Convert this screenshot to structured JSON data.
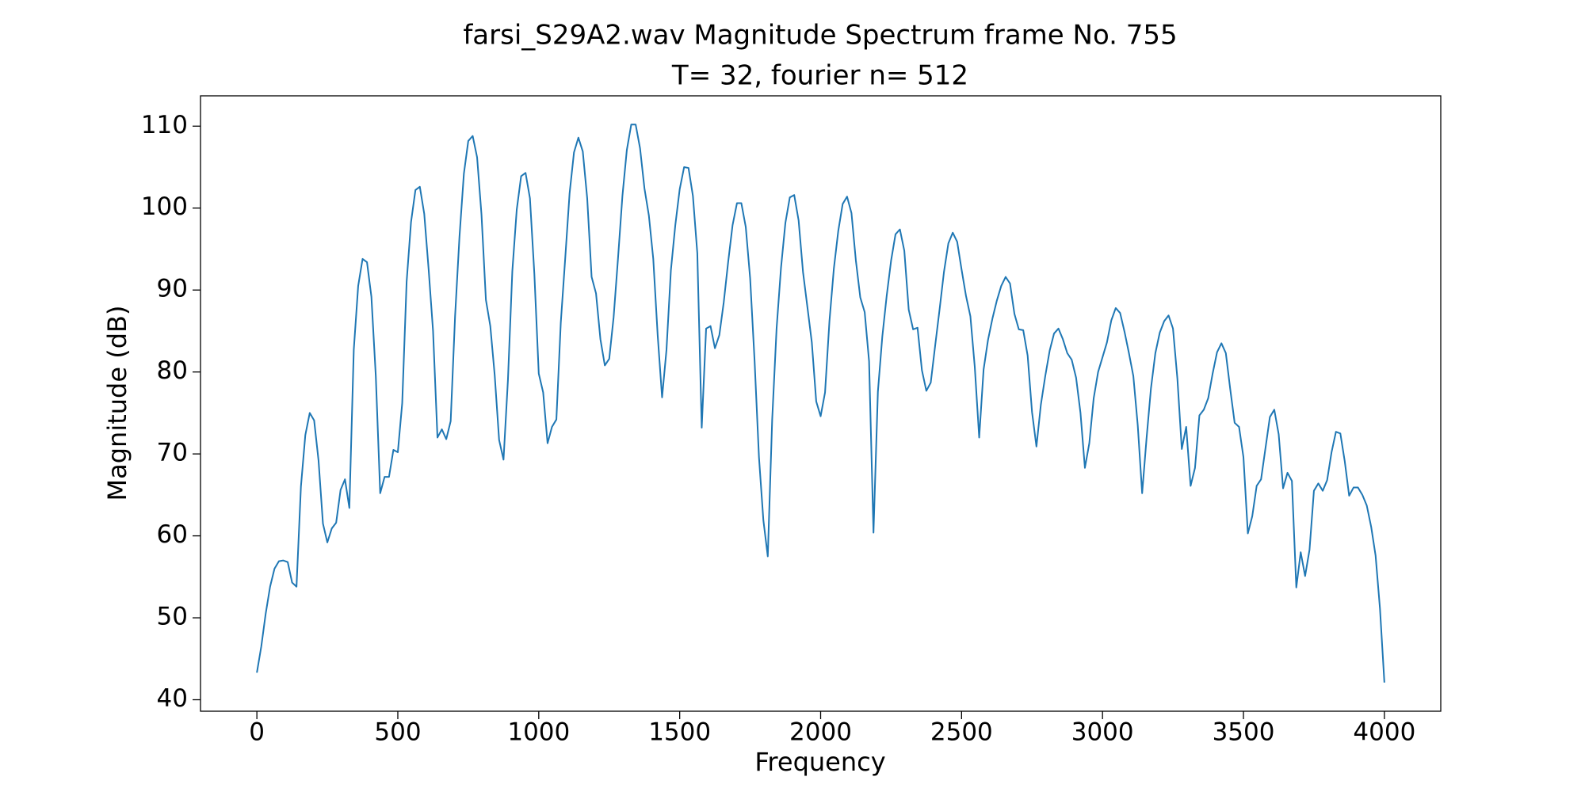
{
  "chart_data": {
    "type": "line",
    "title": "farsi_S29A2.wav Magnitude Spectrum frame No. 755",
    "subtitle": "T= 32, fourier n= 512",
    "x_label": "Frequency",
    "y_label": "Magnitude (dB)",
    "color": "#1f77b4",
    "xlim": [
      -200,
      4200
    ],
    "ylim": [
      38.6,
      113.7
    ],
    "xticks": [
      0,
      500,
      1000,
      1500,
      2000,
      2500,
      3000,
      3500,
      4000
    ],
    "yticks": [
      40,
      50,
      60,
      70,
      80,
      90,
      100,
      110
    ],
    "x": [
      0,
      15.625,
      31.25,
      46.875,
      62.5,
      78.125,
      93.75,
      109.375,
      125,
      140.625,
      156.25,
      171.875,
      187.5,
      203.125,
      218.75,
      234.375,
      250,
      265.625,
      281.25,
      296.875,
      312.5,
      328.125,
      343.75,
      359.375,
      375,
      390.625,
      406.25,
      421.875,
      437.5,
      453.125,
      468.75,
      484.375,
      500,
      515.625,
      531.25,
      546.875,
      562.5,
      578.125,
      593.75,
      609.375,
      625,
      640.625,
      656.25,
      671.875,
      687.5,
      703.125,
      718.75,
      734.375,
      750,
      765.625,
      781.25,
      796.875,
      812.5,
      828.125,
      843.75,
      859.375,
      875,
      890.625,
      906.25,
      921.875,
      937.5,
      953.125,
      968.75,
      984.375,
      1000,
      1015.625,
      1031.25,
      1046.875,
      1062.5,
      1078.125,
      1093.75,
      1109.375,
      1125,
      1140.625,
      1156.25,
      1171.875,
      1187.5,
      1203.125,
      1218.75,
      1234.375,
      1250,
      1265.625,
      1281.25,
      1296.875,
      1312.5,
      1328.125,
      1343.75,
      1359.375,
      1375,
      1390.625,
      1406.25,
      1421.875,
      1437.5,
      1453.125,
      1468.75,
      1484.375,
      1500,
      1515.625,
      1531.25,
      1546.875,
      1562.5,
      1578.125,
      1593.75,
      1609.375,
      1625,
      1640.625,
      1656.25,
      1671.875,
      1687.5,
      1703.125,
      1718.75,
      1734.375,
      1750,
      1765.625,
      1781.25,
      1796.875,
      1812.5,
      1828.125,
      1843.75,
      1859.375,
      1875,
      1890.625,
      1906.25,
      1921.875,
      1937.5,
      1953.125,
      1968.75,
      1984.375,
      2000,
      2015.625,
      2031.25,
      2046.875,
      2062.5,
      2078.125,
      2093.75,
      2109.375,
      2125,
      2140.625,
      2156.25,
      2171.875,
      2187.5,
      2203.125,
      2218.75,
      2234.375,
      2250,
      2265.625,
      2281.25,
      2296.875,
      2312.5,
      2328.125,
      2343.75,
      2359.375,
      2375,
      2390.625,
      2406.25,
      2421.875,
      2437.5,
      2453.125,
      2468.75,
      2484.375,
      2500,
      2515.625,
      2531.25,
      2546.875,
      2562.5,
      2578.125,
      2593.75,
      2609.375,
      2625,
      2640.625,
      2656.25,
      2671.875,
      2687.5,
      2703.125,
      2718.75,
      2734.375,
      2750,
      2765.625,
      2781.25,
      2796.875,
      2812.5,
      2828.125,
      2843.75,
      2859.375,
      2875,
      2890.625,
      2906.25,
      2921.875,
      2937.5,
      2953.125,
      2968.75,
      2984.375,
      3000,
      3015.625,
      3031.25,
      3046.875,
      3062.5,
      3078.125,
      3093.75,
      3109.375,
      3125,
      3140.625,
      3156.25,
      3171.875,
      3187.5,
      3203.125,
      3218.75,
      3234.375,
      3250,
      3265.625,
      3281.25,
      3296.875,
      3312.5,
      3328.125,
      3343.75,
      3359.375,
      3375,
      3390.625,
      3406.25,
      3421.875,
      3437.5,
      3453.125,
      3468.75,
      3484.375,
      3500,
      3515.625,
      3531.25,
      3546.875,
      3562.5,
      3578.125,
      3593.75,
      3609.375,
      3625,
      3640.625,
      3656.25,
      3671.875,
      3687.5,
      3703.125,
      3718.75,
      3734.375,
      3750,
      3765.625,
      3781.25,
      3796.875,
      3812.5,
      3828.125,
      3843.75,
      3859.375,
      3875,
      3890.625,
      3906.25,
      3921.875,
      3937.5,
      3953.125,
      3968.75,
      3984.375,
      4000
    ],
    "values": [
      43.3,
      46.5,
      50.5,
      53.8,
      56,
      56.9,
      57,
      56.8,
      54.3,
      53.8,
      66,
      72.3,
      75,
      74.1,
      69.2,
      61.5,
      59.2,
      60.9,
      61.6,
      65.6,
      66.9,
      63.4,
      82.7,
      90.5,
      93.8,
      93.4,
      89.2,
      79.5,
      65.2,
      67.2,
      67.2,
      70.5,
      70.2,
      76.2,
      91,
      98.3,
      102.2,
      102.6,
      99.3,
      92.5,
      85,
      72,
      73,
      71.8,
      74,
      86.8,
      96.5,
      104.2,
      108.2,
      108.8,
      106.2,
      99.2,
      88.8,
      85.6,
      79.6,
      71.7,
      69.3,
      79,
      92.3,
      99.8,
      103.9,
      104.3,
      101.2,
      92,
      79.8,
      77.5,
      71.3,
      73.3,
      74.2,
      86,
      93.8,
      101.8,
      106.8,
      108.6,
      106.9,
      101.2,
      91.6,
      89.6,
      84,
      80.8,
      81.6,
      86.7,
      93.9,
      101.5,
      107.1,
      110.2,
      110.2,
      107.3,
      102.4,
      99.1,
      93.8,
      84.5,
      76.9,
      82.7,
      92.4,
      97.9,
      102.3,
      105,
      104.9,
      101.5,
      94.5,
      73.2,
      85.3,
      85.6,
      82.9,
      84.5,
      88.5,
      93.4,
      97.9,
      100.6,
      100.6,
      97.7,
      91.4,
      81.4,
      69.6,
      61.9,
      57.5,
      74.2,
      85.3,
      92.7,
      98.2,
      101.3,
      101.6,
      98.5,
      92.2,
      87.9,
      83.6,
      76.4,
      74.6,
      77.5,
      86.2,
      92.6,
      97.2,
      100.5,
      101.4,
      99.4,
      93.6,
      89.1,
      87.3,
      81.3,
      60.4,
      77.6,
      84.3,
      89.3,
      93.6,
      96.8,
      97.4,
      94.8,
      87.6,
      85.2,
      85.4,
      80.2,
      77.7,
      78.7,
      83.2,
      87.6,
      92.2,
      95.7,
      97,
      95.9,
      92.5,
      89.3,
      86.8,
      80.6,
      72,
      80.3,
      83.9,
      86.5,
      88.7,
      90.5,
      91.6,
      90.8,
      87.1,
      85.2,
      85.1,
      82,
      75.1,
      70.9,
      76,
      79.5,
      82.6,
      84.7,
      85.3,
      84,
      82.3,
      81.5,
      79.3,
      75,
      68.3,
      71.3,
      76.8,
      80,
      81.8,
      83.6,
      86.3,
      87.8,
      87.2,
      84.9,
      82.3,
      79.5,
      73.5,
      65.2,
      71.9,
      78,
      82.3,
      84.8,
      86.2,
      86.9,
      85.3,
      79.2,
      70.6,
      73.3,
      66.1,
      68.3,
      74.7,
      75.4,
      76.8,
      79.8,
      82.4,
      83.5,
      82.3,
      77.9,
      73.8,
      73.3,
      69.6,
      60.3,
      62.4,
      66.1,
      66.9,
      70.7,
      74.5,
      75.4,
      72.4,
      65.8,
      67.7,
      66.7,
      53.7,
      58,
      55.1,
      58.3,
      65.5,
      66.4,
      65.5,
      66.8,
      70.2,
      72.7,
      72.5,
      69.1,
      64.9,
      65.9,
      65.9,
      65,
      63.7,
      61.1,
      57.6,
      51.1,
      42.1
    ]
  }
}
